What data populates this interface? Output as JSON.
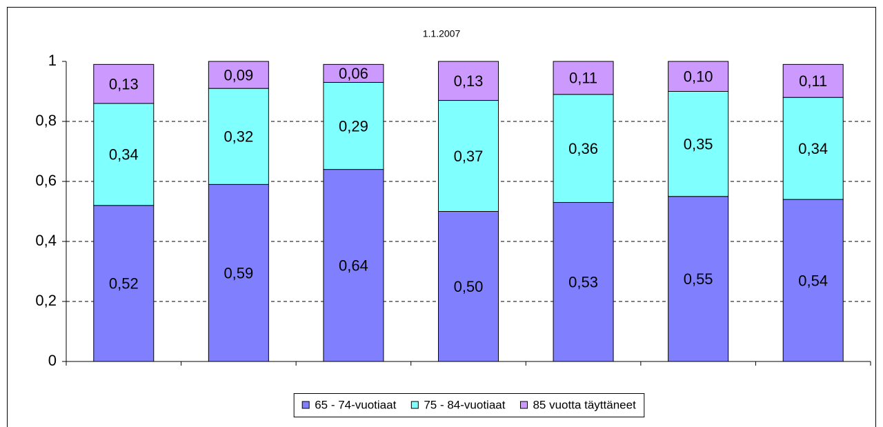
{
  "chart_data": {
    "type": "stacked_bar",
    "title": "1.1.2007",
    "categories": [
      null,
      null,
      null,
      null,
      null,
      null,
      null
    ],
    "series": [
      {
        "name": "65 - 74-vuotiaat",
        "color": "#8080ff",
        "values": [
          0.52,
          0.59,
          0.64,
          0.5,
          0.53,
          0.55,
          0.54
        ],
        "value_labels": [
          "0,52",
          "0,59",
          "0,64",
          "0,50",
          "0,53",
          "0,55",
          "0,54"
        ]
      },
      {
        "name": "75 - 84-vuotiaat",
        "color": "#80ffff",
        "values": [
          0.34,
          0.32,
          0.29,
          0.37,
          0.36,
          0.35,
          0.34
        ],
        "value_labels": [
          "0,34",
          "0,32",
          "0,29",
          "0,37",
          "0,36",
          "0,35",
          "0,34"
        ]
      },
      {
        "name": "85 vuotta täyttäneet",
        "color": "#cc99ff",
        "values": [
          0.13,
          0.09,
          0.06,
          0.13,
          0.11,
          0.1,
          0.11
        ],
        "value_labels": [
          "0,13",
          "0,09",
          "0,06",
          "0,13",
          "0,11",
          "0,10",
          "0,11"
        ]
      }
    ],
    "ylim": [
      0,
      1
    ],
    "yticks": [
      0,
      {
        "value": 0.2,
        "label": "0,2"
      },
      {
        "value": 0.4,
        "label": "0,4"
      },
      {
        "value": 0.6,
        "label": "0,6"
      },
      {
        "value": 0.8,
        "label": "0,8"
      },
      1
    ],
    "grid": true,
    "legend": "bottom"
  }
}
